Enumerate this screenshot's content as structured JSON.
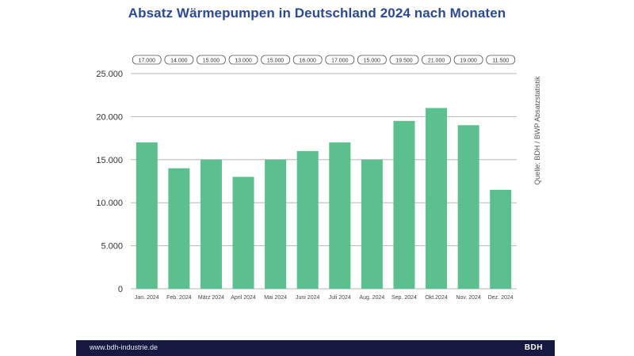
{
  "header": {
    "title": "Absatz Wärmepumpen in Deutschland 2024 nach Monaten"
  },
  "source_note": "Quelle: BDH / BWP Absatzstatistik",
  "footer": {
    "url": "www.bdh-industrie.de",
    "brand": "BDH"
  },
  "colors": {
    "bar": "#5bbf8e",
    "title": "#2c4a8f",
    "grid": "#b5b5b5",
    "footer_bg": "#161a42"
  },
  "chart_data": {
    "type": "bar",
    "title": "Absatz Wärmepumpen in Deutschland 2024 nach Monaten",
    "xlabel": "",
    "ylabel": "",
    "categories": [
      "Jan. 2024",
      "Feb. 2024",
      "März 2024",
      "April 2024",
      "Mai 2024",
      "Juni 2024",
      "Juli 2024",
      "Aug. 2024",
      "Sep. 2024",
      "Okt.2024",
      "Nov. 2024",
      "Dez. 2024"
    ],
    "values": [
      17000,
      14000,
      15000,
      13000,
      15000,
      16000,
      17000,
      15000,
      19500,
      21000,
      19000,
      11500
    ],
    "value_labels": [
      "17.000",
      "14.000",
      "15.000",
      "13.000",
      "15.000",
      "16.000",
      "17.000",
      "15.000",
      "19.500",
      "21.000",
      "19.000",
      "11.500"
    ],
    "ylim": [
      0,
      25000
    ],
    "yticks": [
      0,
      5000,
      10000,
      15000,
      20000,
      25000
    ],
    "ytick_labels": [
      "0",
      "5.000",
      "10.000",
      "15.000",
      "20.000",
      "25.000"
    ],
    "grid": true,
    "legend": "none"
  }
}
